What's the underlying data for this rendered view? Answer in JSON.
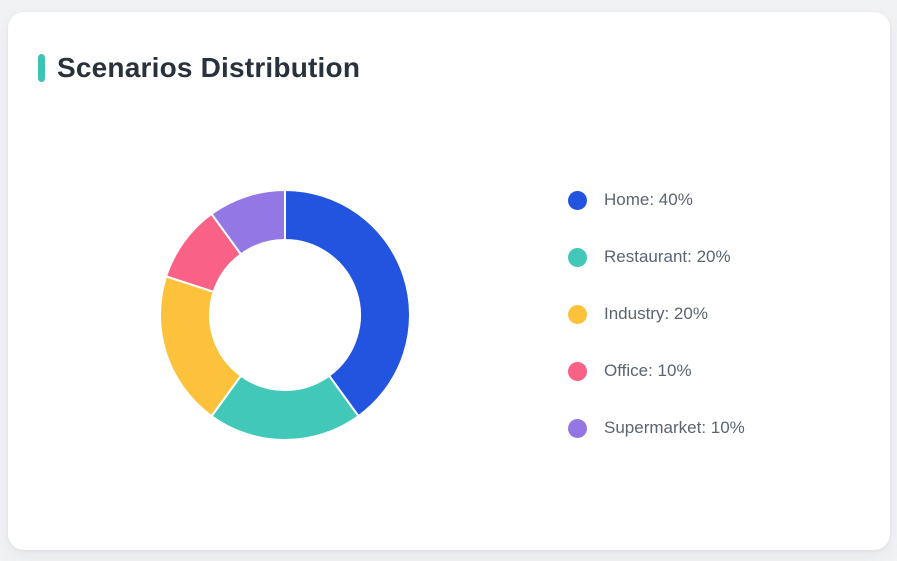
{
  "page": {
    "background_color": "#F1F2F4",
    "card_background_color": "#FFFFFF"
  },
  "header": {
    "title": "Scenarios Distribution",
    "accent_color": "#3BC3B4",
    "title_color": "#28313C"
  },
  "chart_data": {
    "type": "pie",
    "variant": "donut",
    "title": "Scenarios Distribution",
    "categories": [
      "Home",
      "Restaurant",
      "Industry",
      "Office",
      "Supermarket"
    ],
    "values": [
      40,
      20,
      20,
      10,
      10
    ],
    "unit": "%",
    "colors": [
      "#2254E0",
      "#41C8B9",
      "#FCC23C",
      "#FA6186",
      "#9377E5"
    ],
    "legend_labels": [
      "Home: 40%",
      "Restaurant: 20%",
      "Industry: 20%",
      "Office: 10%",
      "Supermarket: 10%"
    ],
    "legend_position": "right",
    "legend_text_color": "#5C6472",
    "start_angle_deg": 0,
    "direction": "clockwise",
    "inner_radius_ratio": 0.6,
    "segment_gap_color": "#FFFFFF"
  }
}
